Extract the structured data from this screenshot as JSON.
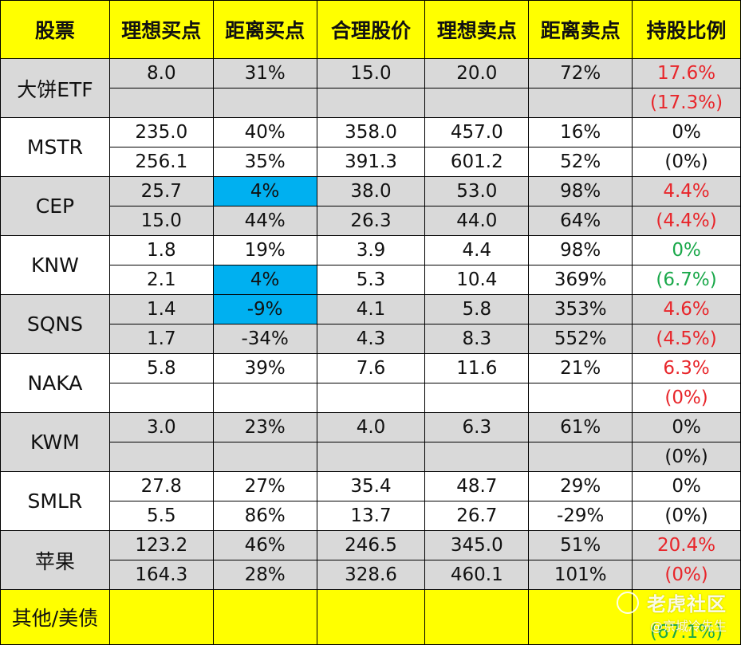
{
  "headers": [
    "股票",
    "理想买点",
    "距离买点",
    "合理股价",
    "理想卖点",
    "距离卖点",
    "持股比例"
  ],
  "stocks": [
    {
      "name": "大饼ETF",
      "bg": "gray",
      "rows": [
        {
          "buy": "8.0",
          "dist_buy": "31%",
          "fair": "15.0",
          "sell": "20.0",
          "dist_sell": "72%",
          "ratio": "17.6%",
          "ratio_color": "red"
        },
        {
          "buy": "",
          "dist_buy": "",
          "fair": "",
          "sell": "",
          "dist_sell": "",
          "ratio": "(17.3%)",
          "ratio_color": "red"
        }
      ]
    },
    {
      "name": "MSTR",
      "bg": "white",
      "rows": [
        {
          "buy": "235.0",
          "dist_buy": "40%",
          "fair": "358.0",
          "sell": "457.0",
          "dist_sell": "16%",
          "ratio": "0%",
          "ratio_color": "black"
        },
        {
          "buy": "256.1",
          "dist_buy": "35%",
          "fair": "391.3",
          "sell": "601.2",
          "dist_sell": "52%",
          "ratio": "(0%)",
          "ratio_color": "black"
        }
      ]
    },
    {
      "name": "CEP",
      "bg": "gray",
      "rows": [
        {
          "buy": "25.7",
          "dist_buy": "4%",
          "dist_buy_highlight": true,
          "fair": "38.0",
          "sell": "53.0",
          "dist_sell": "98%",
          "ratio": "4.4%",
          "ratio_color": "red"
        },
        {
          "buy": "15.0",
          "dist_buy": "44%",
          "fair": "26.3",
          "sell": "44.0",
          "dist_sell": "64%",
          "ratio": "(4.4%)",
          "ratio_color": "red"
        }
      ]
    },
    {
      "name": "KNW",
      "bg": "white",
      "rows": [
        {
          "buy": "1.8",
          "dist_buy": "19%",
          "fair": "3.9",
          "sell": "4.4",
          "dist_sell": "98%",
          "ratio": "0%",
          "ratio_color": "green"
        },
        {
          "buy": "2.1",
          "dist_buy": "4%",
          "dist_buy_highlight": true,
          "fair": "5.3",
          "sell": "10.4",
          "dist_sell": "369%",
          "ratio": "(6.7%)",
          "ratio_color": "green"
        }
      ]
    },
    {
      "name": "SQNS",
      "bg": "gray",
      "rows": [
        {
          "buy": "1.4",
          "dist_buy": "-9%",
          "dist_buy_highlight": true,
          "fair": "4.1",
          "sell": "5.8",
          "dist_sell": "353%",
          "ratio": "4.6%",
          "ratio_color": "red"
        },
        {
          "buy": "1.7",
          "dist_buy": "-34%",
          "fair": "4.3",
          "sell": "8.3",
          "dist_sell": "552%",
          "ratio": "(4.5%)",
          "ratio_color": "red"
        }
      ]
    },
    {
      "name": "NAKA",
      "bg": "white",
      "rows": [
        {
          "buy": "5.8",
          "dist_buy": "39%",
          "fair": "7.6",
          "sell": "11.6",
          "dist_sell": "21%",
          "ratio": "6.3%",
          "ratio_color": "red"
        },
        {
          "buy": "",
          "dist_buy": "",
          "fair": "",
          "sell": "",
          "dist_sell": "",
          "ratio": "(0%)",
          "ratio_color": "red"
        }
      ]
    },
    {
      "name": "KWM",
      "bg": "gray",
      "rows": [
        {
          "buy": "3.0",
          "dist_buy": "23%",
          "fair": "4.0",
          "sell": "6.3",
          "dist_sell": "61%",
          "ratio": "0%",
          "ratio_color": "black"
        },
        {
          "buy": "",
          "dist_buy": "",
          "fair": "",
          "sell": "",
          "dist_sell": "",
          "ratio": "(0%)",
          "ratio_color": "black"
        }
      ]
    },
    {
      "name": "SMLR",
      "bg": "white",
      "rows": [
        {
          "buy": "27.8",
          "dist_buy": "27%",
          "fair": "35.4",
          "sell": "48.7",
          "dist_sell": "29%",
          "ratio": "0%",
          "ratio_color": "black"
        },
        {
          "buy": "5.5",
          "dist_buy": "86%",
          "fair": "13.7",
          "sell": "26.7",
          "dist_sell": "-29%",
          "ratio": "(0%)",
          "ratio_color": "black"
        }
      ]
    },
    {
      "name": "苹果",
      "bg": "gray",
      "rows": [
        {
          "buy": "123.2",
          "dist_buy": "46%",
          "fair": "246.5",
          "sell": "345.0",
          "dist_sell": "51%",
          "ratio": "20.4%",
          "ratio_color": "red"
        },
        {
          "buy": "164.3",
          "dist_buy": "28%",
          "fair": "328.6",
          "sell": "460.1",
          "dist_sell": "101%",
          "ratio": "(0%)",
          "ratio_color": "red"
        }
      ]
    }
  ],
  "footer": {
    "name": "其他/美债",
    "ratio_partial": "(67.1%)",
    "ratio_color": "green"
  },
  "watermark": {
    "brand": "老虎社区",
    "author": "@京城冷先生"
  },
  "colors": {
    "header_bg": "#ffff00",
    "gray_row": "#d9d9d9",
    "highlight": "#00b0f0",
    "red": "#e8262b",
    "green": "#1aa84a"
  }
}
